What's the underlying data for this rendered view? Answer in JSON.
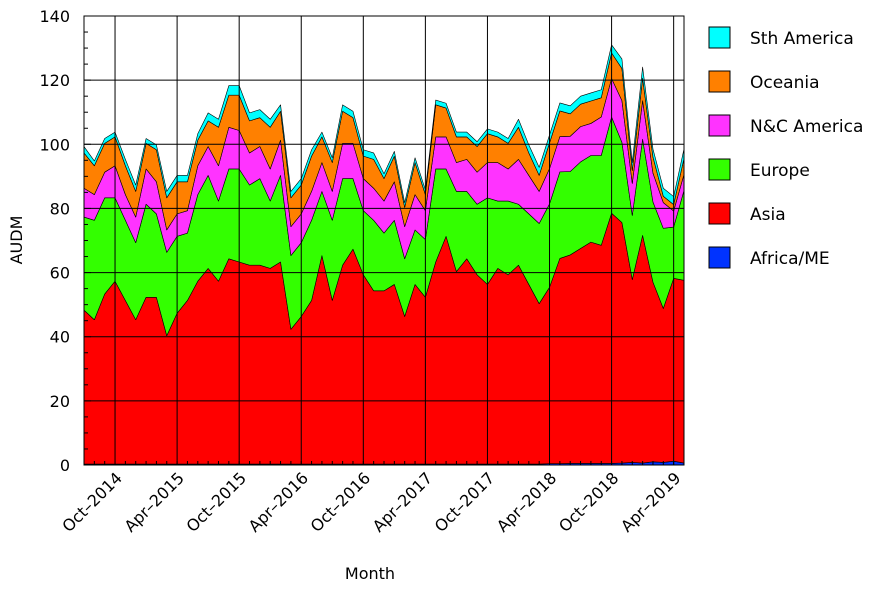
{
  "chart_data": {
    "type": "area",
    "stacked": true,
    "title": "",
    "xlabel": "Month",
    "ylabel": "AUDM",
    "ylim": [
      0,
      140
    ],
    "yticks": [
      0,
      20,
      40,
      60,
      80,
      100,
      120,
      140
    ],
    "grid": true,
    "legend_position": "right",
    "x_start": "Jul-2014",
    "x_end": "Apr-2019",
    "x_tick_labels": [
      {
        "label": "Oct–2014",
        "index": 3
      },
      {
        "label": "Apr–2015",
        "index": 9
      },
      {
        "label": "Oct–2015",
        "index": 15
      },
      {
        "label": "Apr–2016",
        "index": 21
      },
      {
        "label": "Oct–2016",
        "index": 27
      },
      {
        "label": "Apr–2017",
        "index": 33
      },
      {
        "label": "Oct–2017",
        "index": 39
      },
      {
        "label": "Apr–2018",
        "index": 45
      },
      {
        "label": "Oct–2018",
        "index": 51
      },
      {
        "label": "Apr–2019",
        "index": 57
      }
    ],
    "series": [
      {
        "name": "Africa/ME",
        "color": "#0033ff",
        "values": [
          0.3,
          0.3,
          0.3,
          0.3,
          0.3,
          0.3,
          0.3,
          0.3,
          0.3,
          0.3,
          0.3,
          0.3,
          0.3,
          0.3,
          0.3,
          0.3,
          0.3,
          0.3,
          0.3,
          0.3,
          0.3,
          0.3,
          0.3,
          0.3,
          0.3,
          0.3,
          0.3,
          0.3,
          0.3,
          0.3,
          0.3,
          0.3,
          0.3,
          0.3,
          0.3,
          0.3,
          0.3,
          0.3,
          0.3,
          0.3,
          0.3,
          0.3,
          0.3,
          0.3,
          0.3,
          0.4,
          0.4,
          0.5,
          0.5,
          0.5,
          0.5,
          0.5,
          0.6,
          0.8,
          0.6,
          1.0,
          0.8,
          1.2,
          0.6
        ]
      },
      {
        "name": "Asia",
        "color": "#ff0000",
        "values": [
          48,
          45,
          53,
          57,
          51,
          45,
          52,
          52,
          40,
          47,
          51,
          57,
          61,
          57,
          64,
          63,
          62,
          62,
          61,
          63,
          42,
          46,
          51,
          65,
          51,
          62,
          67,
          59,
          54,
          54,
          56,
          46,
          56,
          52,
          63,
          71,
          60,
          64,
          59,
          56,
          61,
          59,
          62,
          56,
          50,
          55,
          64,
          65,
          67,
          69,
          68,
          78,
          75,
          57,
          71,
          56,
          48,
          57,
          57
        ]
      },
      {
        "name": "Europe",
        "color": "#33ff00",
        "values": [
          29,
          31,
          30,
          26,
          25,
          24,
          29,
          26,
          26,
          24,
          21,
          27,
          29,
          25,
          28,
          29,
          25,
          27,
          21,
          27,
          23,
          23,
          25,
          20,
          25,
          27,
          22,
          20,
          22,
          18,
          20,
          18,
          17,
          18,
          29,
          21,
          25,
          21,
          22,
          27,
          21,
          23,
          19,
          22,
          25,
          26,
          27,
          26,
          27,
          27,
          28,
          30,
          25,
          20,
          30,
          25,
          25,
          16,
          28
        ]
      },
      {
        "name": "N&C America",
        "color": "#ff33ff",
        "values": [
          9,
          8,
          8,
          10,
          8,
          8,
          11,
          10,
          7,
          7,
          7,
          9,
          9,
          11,
          13,
          12,
          10,
          10,
          10,
          11,
          9,
          9,
          9,
          9,
          9,
          11,
          11,
          10,
          10,
          10,
          12,
          10,
          11,
          9,
          10,
          10,
          9,
          10,
          10,
          11,
          12,
          10,
          14,
          12,
          10,
          11,
          11,
          11,
          11,
          10,
          12,
          12,
          13,
          10,
          12,
          9,
          8,
          5,
          5
        ]
      },
      {
        "name": "Oceania",
        "color": "#ff8000",
        "values": [
          11,
          9,
          9,
          9,
          9,
          8,
          8,
          10,
          10,
          10,
          9,
          8,
          8,
          12,
          10,
          11,
          10,
          9,
          13,
          9,
          9,
          9,
          11,
          8,
          9,
          10,
          8,
          7,
          9,
          7,
          8,
          6,
          10,
          5,
          10,
          9,
          8,
          7,
          8,
          9,
          8,
          8,
          10,
          7,
          5,
          8,
          8,
          7,
          7,
          7,
          6,
          8,
          10,
          4,
          7,
          5,
          2,
          2,
          5
        ]
      },
      {
        "name": "Sth America",
        "color": "#00ffff",
        "values": [
          2,
          1.5,
          1.5,
          1.5,
          2,
          2,
          1.5,
          1.5,
          2,
          2,
          2,
          2,
          2.5,
          2.5,
          3,
          3,
          2.5,
          2.5,
          2.5,
          2,
          2,
          2,
          2,
          1.5,
          1.5,
          2,
          2,
          2,
          2,
          1.5,
          1.5,
          1.5,
          1.5,
          1.5,
          1.5,
          1.5,
          1.5,
          1.5,
          1.5,
          1.5,
          1.5,
          1.5,
          2.5,
          2.5,
          2.5,
          2.5,
          2.5,
          2.5,
          2.5,
          2.5,
          2.5,
          2.5,
          3,
          2.5,
          3.5,
          2.5,
          2.5,
          2.5,
          3
        ]
      }
    ]
  }
}
